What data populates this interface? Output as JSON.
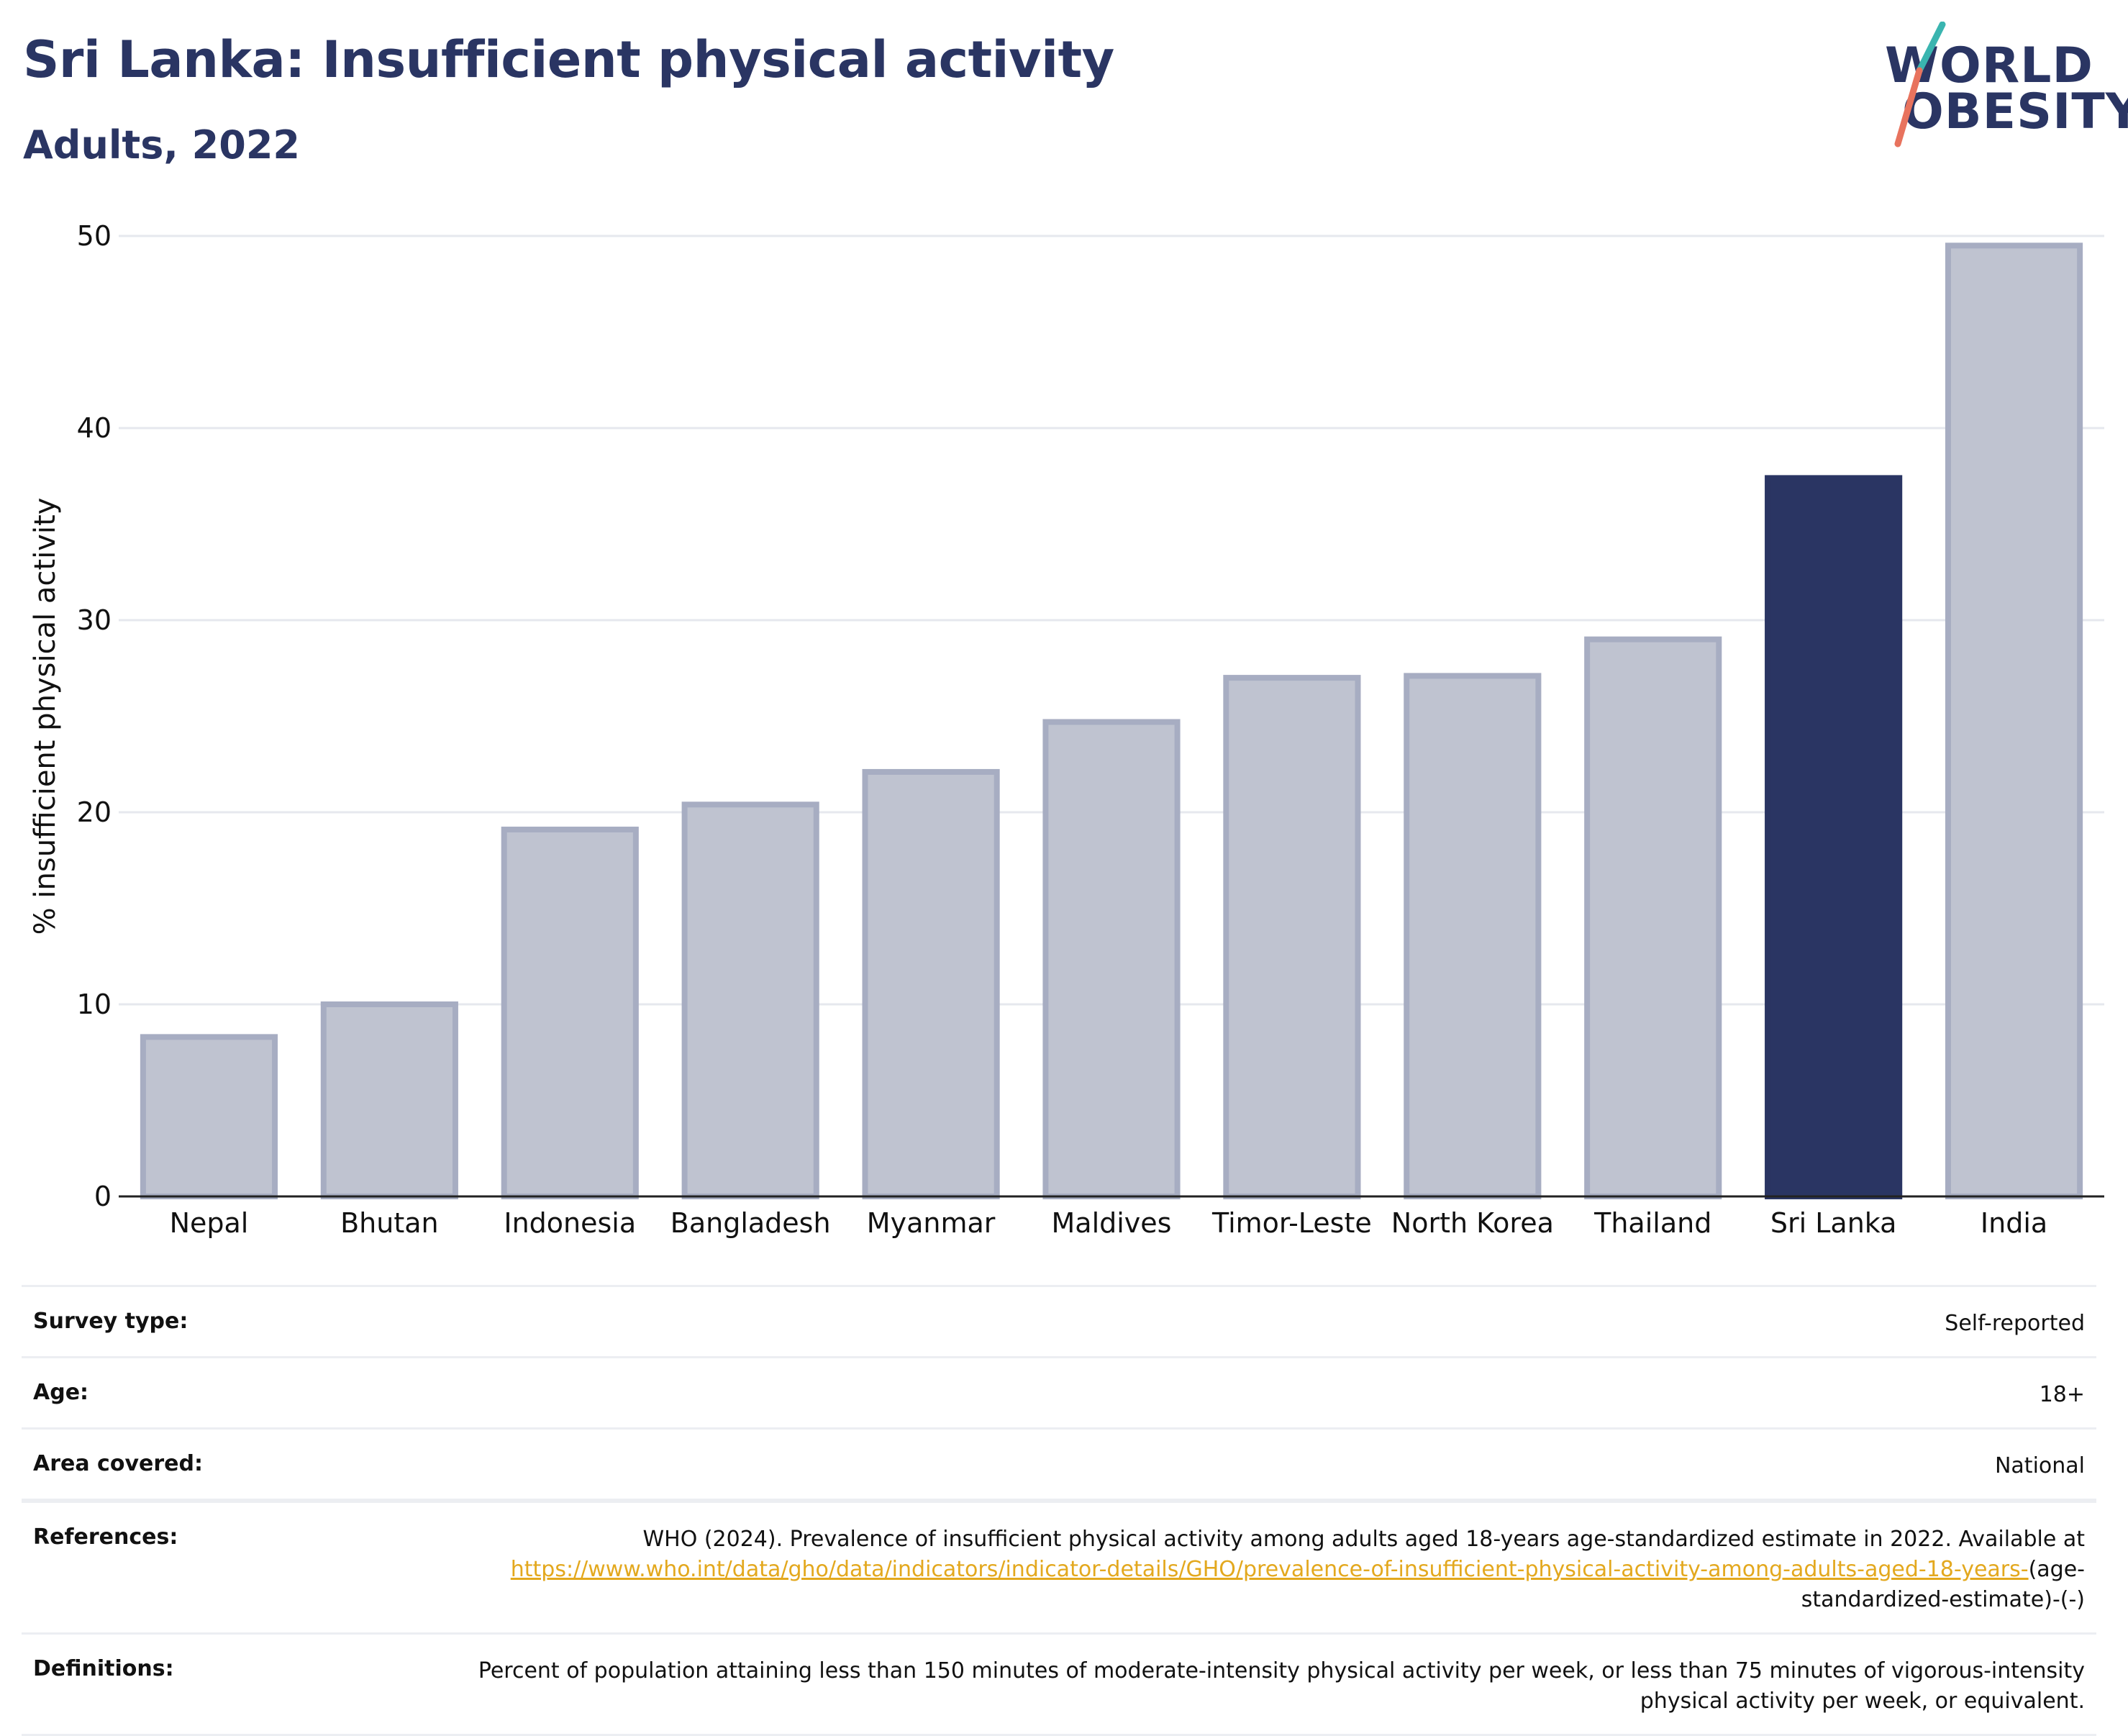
{
  "header": {
    "title": "Sri Lanka: Insufficient physical activity",
    "subtitle": "Adults, 2022",
    "logo_text_line1": "WORLD",
    "logo_text_line2": "OBESITY"
  },
  "colors": {
    "title": "#2a3563",
    "bar_other": "#bfc3d0",
    "bar_other_border": "#a7adc2",
    "bar_highlight": "#2a3563",
    "link": "#e3a81e",
    "logo_teal": "#3ab5b0",
    "logo_coral": "#e8735e"
  },
  "chart_data": {
    "type": "bar",
    "categories": [
      "Nepal",
      "Bhutan",
      "Indonesia",
      "Bangladesh",
      "Myanmar",
      "Maldives",
      "Timor-Leste",
      "North Korea",
      "Thailand",
      "Sri Lanka",
      "India"
    ],
    "values": [
      8.3,
      10.0,
      19.1,
      20.4,
      22.1,
      24.7,
      27.0,
      27.1,
      29.0,
      37.4,
      49.5
    ],
    "highlight": "Sri Lanka",
    "ylabel": "% insufficient physical activity",
    "xlabel": "",
    "ylim": [
      0,
      50
    ],
    "yticks": [
      0,
      10,
      20,
      30,
      40,
      50
    ],
    "grid": true
  },
  "meta": {
    "rows": [
      {
        "label": "Survey type:",
        "value": "Self-reported"
      },
      {
        "label": "Age:",
        "value": "18+"
      },
      {
        "label": "Area covered:",
        "value": "National"
      }
    ],
    "references": {
      "label": "References:",
      "text": "WHO (2024). Prevalence of insufficient physical activity among adults aged 18-years age-standardized estimate in 2022. Available at",
      "link": "https://www.who.int/data/gho/data/indicators/indicator-details/GHO/prevalence-of-insufficient-physical-activity-among-adults-aged-18-years-",
      "suffix": "(age-standardized-estimate)-(-)"
    },
    "definitions": {
      "label": "Definitions:",
      "text": "Percent of population attaining less than 150 minutes of moderate-intensity physical activity per week, or less than 75 minutes of vigorous-intensity physical activity per week, or equivalent."
    }
  }
}
